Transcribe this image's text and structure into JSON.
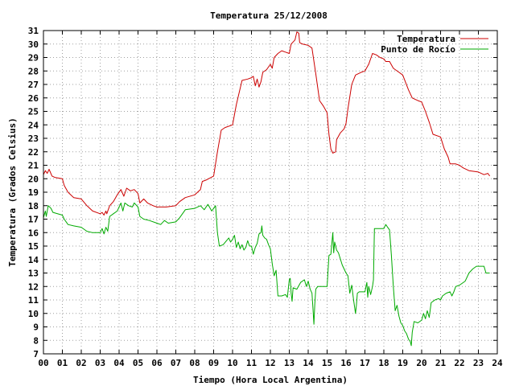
{
  "chart_data": {
    "type": "line",
    "title": "Temperatura 25/12/2008",
    "xlabel": "Tiempo (Hora Local Argentina)",
    "ylabel": "Temperatura (Grados Celsius)",
    "xlim": [
      0,
      24
    ],
    "ylim": [
      7,
      31
    ],
    "x_ticks": [
      "00",
      "01",
      "02",
      "03",
      "04",
      "05",
      "06",
      "07",
      "08",
      "09",
      "10",
      "11",
      "12",
      "13",
      "14",
      "15",
      "16",
      "17",
      "18",
      "19",
      "20",
      "21",
      "22",
      "23",
      "24"
    ],
    "y_ticks": [
      7,
      8,
      9,
      10,
      11,
      12,
      13,
      14,
      15,
      16,
      17,
      18,
      19,
      20,
      21,
      22,
      23,
      24,
      25,
      26,
      27,
      28,
      29,
      30,
      31
    ],
    "grid": true,
    "legend": "top-right",
    "series": [
      {
        "name": "Temperatura",
        "color": "#cc0000",
        "points": [
          [
            0.0,
            20.3
          ],
          [
            0.1,
            20.6
          ],
          [
            0.2,
            20.4
          ],
          [
            0.3,
            20.7
          ],
          [
            0.45,
            20.2
          ],
          [
            0.6,
            20.1
          ],
          [
            1.0,
            20.0
          ],
          [
            1.1,
            19.5
          ],
          [
            1.3,
            19.0
          ],
          [
            1.6,
            18.6
          ],
          [
            2.0,
            18.5
          ],
          [
            2.3,
            18.0
          ],
          [
            2.6,
            17.6
          ],
          [
            3.0,
            17.4
          ],
          [
            3.1,
            17.5
          ],
          [
            3.2,
            17.3
          ],
          [
            3.3,
            17.6
          ],
          [
            3.35,
            17.4
          ],
          [
            3.5,
            18.0
          ],
          [
            3.7,
            18.3
          ],
          [
            3.9,
            18.8
          ],
          [
            4.1,
            19.2
          ],
          [
            4.25,
            18.7
          ],
          [
            4.4,
            19.3
          ],
          [
            4.6,
            19.1
          ],
          [
            4.8,
            19.2
          ],
          [
            5.0,
            18.9
          ],
          [
            5.1,
            18.2
          ],
          [
            5.3,
            18.5
          ],
          [
            5.5,
            18.2
          ],
          [
            5.8,
            18.0
          ],
          [
            6.0,
            17.9
          ],
          [
            6.5,
            17.9
          ],
          [
            7.0,
            18.0
          ],
          [
            7.2,
            18.3
          ],
          [
            7.5,
            18.6
          ],
          [
            8.0,
            18.8
          ],
          [
            8.3,
            19.2
          ],
          [
            8.4,
            19.8
          ],
          [
            8.6,
            19.9
          ],
          [
            9.0,
            20.2
          ],
          [
            9.2,
            22.0
          ],
          [
            9.4,
            23.6
          ],
          [
            9.6,
            23.8
          ],
          [
            10.0,
            24.0
          ],
          [
            10.2,
            25.5
          ],
          [
            10.5,
            27.3
          ],
          [
            10.8,
            27.4
          ],
          [
            11.0,
            27.5
          ],
          [
            11.1,
            27.6
          ],
          [
            11.2,
            26.9
          ],
          [
            11.3,
            27.4
          ],
          [
            11.4,
            26.8
          ],
          [
            11.5,
            27.2
          ],
          [
            11.6,
            27.9
          ],
          [
            11.8,
            28.1
          ],
          [
            12.0,
            28.5
          ],
          [
            12.1,
            28.2
          ],
          [
            12.2,
            29.0
          ],
          [
            12.4,
            29.3
          ],
          [
            12.6,
            29.5
          ],
          [
            12.8,
            29.4
          ],
          [
            13.0,
            29.3
          ],
          [
            13.1,
            30.0
          ],
          [
            13.3,
            30.3
          ],
          [
            13.4,
            30.9
          ],
          [
            13.5,
            30.8
          ],
          [
            13.55,
            30.1
          ],
          [
            13.7,
            30.0
          ],
          [
            14.0,
            29.9
          ],
          [
            14.2,
            29.7
          ],
          [
            14.4,
            27.8
          ],
          [
            14.6,
            25.8
          ],
          [
            14.8,
            25.4
          ],
          [
            15.0,
            24.9
          ],
          [
            15.1,
            23.3
          ],
          [
            15.2,
            22.2
          ],
          [
            15.3,
            21.9
          ],
          [
            15.45,
            22.0
          ],
          [
            15.5,
            22.9
          ],
          [
            15.7,
            23.4
          ],
          [
            15.9,
            23.7
          ],
          [
            16.0,
            24.1
          ],
          [
            16.1,
            25.2
          ],
          [
            16.3,
            27.0
          ],
          [
            16.5,
            27.7
          ],
          [
            16.8,
            27.9
          ],
          [
            17.0,
            28.0
          ],
          [
            17.2,
            28.5
          ],
          [
            17.4,
            29.3
          ],
          [
            17.6,
            29.2
          ],
          [
            17.8,
            29.0
          ],
          [
            18.0,
            28.9
          ],
          [
            18.1,
            28.7
          ],
          [
            18.3,
            28.7
          ],
          [
            18.5,
            28.2
          ],
          [
            18.8,
            27.9
          ],
          [
            19.0,
            27.7
          ],
          [
            19.3,
            26.6
          ],
          [
            19.5,
            26.0
          ],
          [
            19.8,
            25.8
          ],
          [
            20.0,
            25.7
          ],
          [
            20.2,
            25.0
          ],
          [
            20.4,
            24.2
          ],
          [
            20.6,
            23.3
          ],
          [
            21.0,
            23.1
          ],
          [
            21.2,
            22.2
          ],
          [
            21.4,
            21.6
          ],
          [
            21.5,
            21.1
          ],
          [
            21.8,
            21.1
          ],
          [
            22.0,
            21.0
          ],
          [
            22.2,
            20.8
          ],
          [
            22.5,
            20.6
          ],
          [
            23.0,
            20.5
          ],
          [
            23.3,
            20.3
          ],
          [
            23.5,
            20.4
          ],
          [
            23.6,
            20.2
          ]
        ]
      },
      {
        "name": "Punto de Rocío",
        "color": "#00aa00",
        "points": [
          [
            0.0,
            17.1
          ],
          [
            0.1,
            17.6
          ],
          [
            0.15,
            17.2
          ],
          [
            0.25,
            18.0
          ],
          [
            0.4,
            17.8
          ],
          [
            0.5,
            17.5
          ],
          [
            1.0,
            17.3
          ],
          [
            1.1,
            17.0
          ],
          [
            1.3,
            16.6
          ],
          [
            1.6,
            16.5
          ],
          [
            2.0,
            16.4
          ],
          [
            2.3,
            16.1
          ],
          [
            2.6,
            16.0
          ],
          [
            3.0,
            16.0
          ],
          [
            3.1,
            16.3
          ],
          [
            3.2,
            15.9
          ],
          [
            3.3,
            16.4
          ],
          [
            3.4,
            16.1
          ],
          [
            3.5,
            17.2
          ],
          [
            3.7,
            17.4
          ],
          [
            3.9,
            17.6
          ],
          [
            4.1,
            18.2
          ],
          [
            4.2,
            17.6
          ],
          [
            4.3,
            18.2
          ],
          [
            4.5,
            18.0
          ],
          [
            4.7,
            17.9
          ],
          [
            4.8,
            18.2
          ],
          [
            5.0,
            17.9
          ],
          [
            5.1,
            17.2
          ],
          [
            5.3,
            17.0
          ],
          [
            5.6,
            16.9
          ],
          [
            6.0,
            16.7
          ],
          [
            6.2,
            16.6
          ],
          [
            6.4,
            16.9
          ],
          [
            6.6,
            16.7
          ],
          [
            7.0,
            16.8
          ],
          [
            7.2,
            17.1
          ],
          [
            7.5,
            17.7
          ],
          [
            8.0,
            17.8
          ],
          [
            8.3,
            18.0
          ],
          [
            8.5,
            17.7
          ],
          [
            8.7,
            18.1
          ],
          [
            8.9,
            17.6
          ],
          [
            9.1,
            18.0
          ],
          [
            9.2,
            16.0
          ],
          [
            9.3,
            15.0
          ],
          [
            9.5,
            15.1
          ],
          [
            9.8,
            15.6
          ],
          [
            9.9,
            15.3
          ],
          [
            10.0,
            15.5
          ],
          [
            10.1,
            15.8
          ],
          [
            10.2,
            14.9
          ],
          [
            10.3,
            15.3
          ],
          [
            10.4,
            14.8
          ],
          [
            10.5,
            15.1
          ],
          [
            10.6,
            14.7
          ],
          [
            10.7,
            14.9
          ],
          [
            10.8,
            15.4
          ],
          [
            10.9,
            15.0
          ],
          [
            11.0,
            15.0
          ],
          [
            11.1,
            14.4
          ],
          [
            11.2,
            14.9
          ],
          [
            11.3,
            15.2
          ],
          [
            11.4,
            15.9
          ],
          [
            11.5,
            16.0
          ],
          [
            11.55,
            16.5
          ],
          [
            11.6,
            15.8
          ],
          [
            11.7,
            15.6
          ],
          [
            11.8,
            15.5
          ],
          [
            11.9,
            15.1
          ],
          [
            12.0,
            14.8
          ],
          [
            12.1,
            13.7
          ],
          [
            12.2,
            12.8
          ],
          [
            12.3,
            13.2
          ],
          [
            12.4,
            11.3
          ],
          [
            12.6,
            11.3
          ],
          [
            12.8,
            11.4
          ],
          [
            12.9,
            11.2
          ],
          [
            13.0,
            12.5
          ],
          [
            13.05,
            12.6
          ],
          [
            13.1,
            11.5
          ],
          [
            13.15,
            10.9
          ],
          [
            13.2,
            11.9
          ],
          [
            13.4,
            11.8
          ],
          [
            13.6,
            12.3
          ],
          [
            13.8,
            12.5
          ],
          [
            13.9,
            12.0
          ],
          [
            14.0,
            12.4
          ],
          [
            14.1,
            11.8
          ],
          [
            14.2,
            11.5
          ],
          [
            14.25,
            10.4
          ],
          [
            14.3,
            9.2
          ],
          [
            14.35,
            10.7
          ],
          [
            14.4,
            11.8
          ],
          [
            14.5,
            12.0
          ],
          [
            14.8,
            12.0
          ],
          [
            15.0,
            12.0
          ],
          [
            15.1,
            14.3
          ],
          [
            15.2,
            14.4
          ],
          [
            15.3,
            16.0
          ],
          [
            15.35,
            14.5
          ],
          [
            15.4,
            15.3
          ],
          [
            15.5,
            14.7
          ],
          [
            15.6,
            14.5
          ],
          [
            15.8,
            13.6
          ],
          [
            16.0,
            13.0
          ],
          [
            16.1,
            12.8
          ],
          [
            16.2,
            11.5
          ],
          [
            16.3,
            12.1
          ],
          [
            16.4,
            11.0
          ],
          [
            16.5,
            10.0
          ],
          [
            16.55,
            10.6
          ],
          [
            16.6,
            11.5
          ],
          [
            16.7,
            11.6
          ],
          [
            17.0,
            11.6
          ],
          [
            17.1,
            12.3
          ],
          [
            17.15,
            11.2
          ],
          [
            17.2,
            12.0
          ],
          [
            17.3,
            11.4
          ],
          [
            17.4,
            12.0
          ],
          [
            17.45,
            12.5
          ],
          [
            17.5,
            16.3
          ],
          [
            17.8,
            16.3
          ],
          [
            18.0,
            16.3
          ],
          [
            18.1,
            16.6
          ],
          [
            18.2,
            16.4
          ],
          [
            18.3,
            16.2
          ],
          [
            18.4,
            14.3
          ],
          [
            18.5,
            12.0
          ],
          [
            18.6,
            10.2
          ],
          [
            18.7,
            10.6
          ],
          [
            18.8,
            9.8
          ],
          [
            18.9,
            9.3
          ],
          [
            19.0,
            9.1
          ],
          [
            19.1,
            8.7
          ],
          [
            19.2,
            8.5
          ],
          [
            19.3,
            8.1
          ],
          [
            19.4,
            7.9
          ],
          [
            19.45,
            7.6
          ],
          [
            19.5,
            8.6
          ],
          [
            19.6,
            9.4
          ],
          [
            19.8,
            9.3
          ],
          [
            20.0,
            9.5
          ],
          [
            20.1,
            10.0
          ],
          [
            20.2,
            9.6
          ],
          [
            20.3,
            10.2
          ],
          [
            20.4,
            9.7
          ],
          [
            20.5,
            10.8
          ],
          [
            20.7,
            11.0
          ],
          [
            20.9,
            11.1
          ],
          [
            21.0,
            11.0
          ],
          [
            21.1,
            11.3
          ],
          [
            21.3,
            11.5
          ],
          [
            21.5,
            11.6
          ],
          [
            21.6,
            11.3
          ],
          [
            21.7,
            11.6
          ],
          [
            21.8,
            12.0
          ],
          [
            22.0,
            12.1
          ],
          [
            22.3,
            12.4
          ],
          [
            22.5,
            13.0
          ],
          [
            22.7,
            13.3
          ],
          [
            22.9,
            13.5
          ],
          [
            23.0,
            13.5
          ],
          [
            23.3,
            13.5
          ],
          [
            23.4,
            13.0
          ],
          [
            23.6,
            13.0
          ]
        ]
      }
    ]
  }
}
